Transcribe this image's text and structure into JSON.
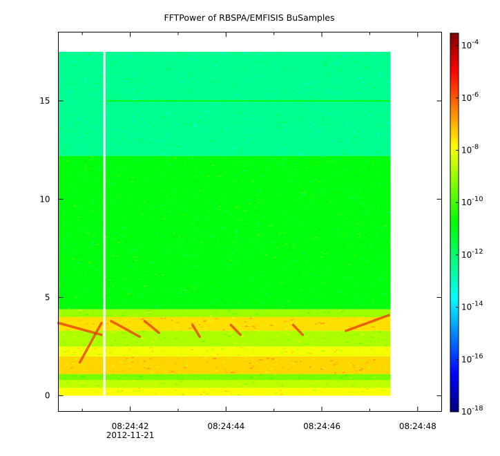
{
  "chart_data": {
    "type": "heatmap",
    "title": "FFTPower of RBSPA/EMFISIS  BuSamples",
    "xlabel": "",
    "ylabel": "",
    "x": {
      "type": "time",
      "date": "2012-11-21",
      "start": "08:24:40.5",
      "end": "08:24:48.5",
      "major_ticks": [
        "08:24:42",
        "08:24:44",
        "08:24:46",
        "08:24:48"
      ],
      "minor_ticks": [
        "08:24:41",
        "08:24:43",
        "08:24:45",
        "08:24:47"
      ],
      "date_label": "2012-11-21",
      "data_start": "08:24:40.5",
      "data_end": "08:24:47.43",
      "gap_at": "08:24:41.46"
    },
    "y": {
      "range": [
        -0.8,
        18.5
      ],
      "ticks": [
        0,
        5,
        10,
        15
      ],
      "data_range": [
        0,
        17.5
      ]
    },
    "colorbar": {
      "scale": "log",
      "range": [
        "1e-18",
        "3e-4"
      ],
      "tick_labels": [
        {
          "base": "10",
          "exp": "-4"
        },
        {
          "base": "10",
          "exp": "-6"
        },
        {
          "base": "10",
          "exp": "-8"
        },
        {
          "base": "10",
          "exp": "-10"
        },
        {
          "base": "10",
          "exp": "-12"
        },
        {
          "base": "10",
          "exp": "-14"
        },
        {
          "base": "10",
          "exp": "-16"
        },
        {
          "base": "10",
          "exp": "-18"
        }
      ],
      "colormap": [
        "#00007f",
        "#0000ff",
        "#007fff",
        "#00ffff",
        "#00ff7f",
        "#00ff00",
        "#7fff00",
        "#ffff00",
        "#ff7f00",
        "#ff0000",
        "#7f0000"
      ]
    },
    "bands": [
      {
        "y": [
          12.2,
          17.5
        ],
        "log_power": -12.4
      },
      {
        "y": [
          4.4,
          12.2
        ],
        "log_power": -10.9
      },
      {
        "y": [
          4.0,
          4.4
        ],
        "log_power": -9.0
      },
      {
        "y": [
          3.3,
          4.0
        ],
        "log_power": -7.5
      },
      {
        "y": [
          2.5,
          3.3
        ],
        "log_power": -8.8
      },
      {
        "y": [
          2.0,
          2.5
        ],
        "log_power": -8.0
      },
      {
        "y": [
          1.1,
          2.0
        ],
        "log_power": -7.4
      },
      {
        "y": [
          0.8,
          1.1
        ],
        "log_power": -9.4
      },
      {
        "y": [
          0.4,
          0.8
        ],
        "log_power": -8.6
      },
      {
        "y": [
          0.0,
          0.4
        ],
        "log_power": -7.9
      }
    ],
    "line_15": {
      "y": 15.0,
      "log_power": -10.9
    },
    "streaks": [
      {
        "t0": "08:24:40.5",
        "y0": 3.7,
        "t1": "08:24:41.4",
        "y1": 3.1
      },
      {
        "t0": "08:24:40.95",
        "y0": 1.7,
        "t1": "08:24:41.4",
        "y1": 3.7
      },
      {
        "t0": "08:24:41.6",
        "y0": 3.8,
        "t1": "08:24:42.2",
        "y1": 3.0
      },
      {
        "t0": "08:24:42.3",
        "y0": 3.8,
        "t1": "08:24:42.6",
        "y1": 3.2
      },
      {
        "t0": "08:24:43.3",
        "y0": 3.6,
        "t1": "08:24:43.45",
        "y1": 3.0
      },
      {
        "t0": "08:24:44.1",
        "y0": 3.6,
        "t1": "08:24:44.3",
        "y1": 3.1
      },
      {
        "t0": "08:24:45.4",
        "y0": 3.6,
        "t1": "08:24:45.6",
        "y1": 3.1
      },
      {
        "t0": "08:24:46.5",
        "y0": 3.3,
        "t1": "08:24:47.4",
        "y1": 4.1
      }
    ]
  }
}
